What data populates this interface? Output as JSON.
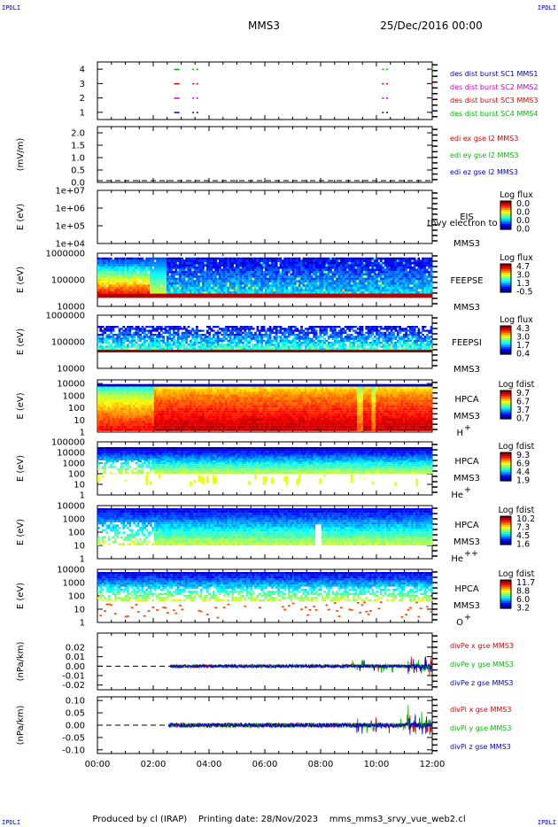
{
  "corner_label": "IPDLI",
  "header": {
    "mission": "MMS3",
    "date": "25/Dec/2016 00:00"
  },
  "footer": {
    "produced": "Produced by cl (IRAP)",
    "printing": "Printing date: 28/Nov/2023",
    "file": "mms_mms3_srvy_vue_web2.cl"
  },
  "chart_data": [
    {
      "id": "des-burst",
      "type": "line",
      "xlabel": "",
      "ylabel": "",
      "ylim": [
        0.5,
        4.5
      ],
      "yticks": [
        "1",
        "2",
        "3",
        "4"
      ],
      "legend_placement": "right",
      "series": [
        {
          "name": "des dist burst SC1 MMS1",
          "color": "#0000cc",
          "level": 1
        },
        {
          "name": "des dist burst SC2 MMS2",
          "color": "#cc00cc",
          "level": 2
        },
        {
          "name": "des dist burst SC3 MMS3",
          "color": "#dd0000",
          "level": 3
        },
        {
          "name": "des dist burst SC4 MMS4",
          "color": "#00bb00",
          "level": 4
        }
      ],
      "burst_times_hours": [
        2.75,
        3.4,
        3.55,
        10.2,
        10.35,
        11.95
      ]
    },
    {
      "id": "edi",
      "type": "line",
      "ylabel": "(mV/m)",
      "ylim": [
        0,
        2.25
      ],
      "yticks": [
        "0.0",
        "0.5",
        "1.0",
        "1.5",
        "2.0"
      ],
      "zero_line": true,
      "series": [
        {
          "name": "edi ex gse l2 MMS3",
          "color": "#dd0000"
        },
        {
          "name": "edi ey gse l2 MMS3",
          "color": "#00bb00"
        },
        {
          "name": "edi ez gse l2 MMS3",
          "color": "#0000cc"
        }
      ]
    },
    {
      "id": "eis",
      "type": "heatmap",
      "ylabel": "E (eV)",
      "yscale": "log",
      "ylim": [
        10000,
        10000000
      ],
      "yticks": [
        "1e+04",
        "1e+05",
        "1e+06",
        "1e+07"
      ],
      "instrument": "EIS",
      "instrument_note": "thvy electron to",
      "spacecraft": "MMS3",
      "colorbar": {
        "title": "Log flux",
        "ticks": [
          "0.0",
          "0.0",
          "0.0",
          "0.0"
        ]
      }
    },
    {
      "id": "feepse",
      "type": "heatmap",
      "ylabel": "E (eV)",
      "yscale": "log",
      "ylim": [
        10000,
        1000000
      ],
      "yticks": [
        "10000",
        "100000",
        "1000000"
      ],
      "instrument": "FEEPSE",
      "spacecraft": "MMS3",
      "colorbar": {
        "title": "Log flux",
        "ticks": [
          "4.7",
          "3.0",
          "1.3",
          "-0.5"
        ]
      }
    },
    {
      "id": "feepsi",
      "type": "heatmap",
      "ylabel": "E (eV)",
      "yscale": "log",
      "ylim": [
        10000,
        1000000
      ],
      "yticks": [
        "10000",
        "100000",
        "1000000"
      ],
      "instrument": "FEEPSI",
      "spacecraft": "MMS3",
      "colorbar": {
        "title": "Log flux",
        "ticks": [
          "4.3",
          "3.0",
          "1.7",
          "0.4"
        ]
      }
    },
    {
      "id": "hpca-h",
      "type": "heatmap",
      "ylabel": "E (eV)",
      "yscale": "log",
      "ylim": [
        1,
        20000
      ],
      "yticks": [
        "1",
        "10",
        "100",
        "1000",
        "10000"
      ],
      "instrument": "HPCA",
      "spacecraft": "MMS3",
      "species": "H",
      "charge": "+",
      "colorbar": {
        "title": "Log fdist",
        "ticks": [
          "9.7",
          "6.7",
          "3.7",
          "0.7"
        ]
      }
    },
    {
      "id": "hpca-he",
      "type": "heatmap",
      "ylabel": "E (eV)",
      "yscale": "log",
      "ylim": [
        1,
        100000
      ],
      "yticks": [
        "1",
        "10",
        "100",
        "1000",
        "10000",
        "100000"
      ],
      "instrument": "HPCA",
      "spacecraft": "MMS3",
      "species": "He",
      "charge": "+",
      "colorbar": {
        "title": "Log fdist",
        "ticks": [
          "9.3",
          "6.9",
          "4.4",
          "1.9"
        ]
      }
    },
    {
      "id": "hpca-hepp",
      "type": "heatmap",
      "ylabel": "E (eV)",
      "yscale": "log",
      "ylim": [
        1,
        10000
      ],
      "yticks": [
        "1",
        "10",
        "100",
        "1000",
        "10000"
      ],
      "instrument": "HPCA",
      "spacecraft": "MMS3",
      "species": "He",
      "charge": "++",
      "colorbar": {
        "title": "Log fdist",
        "ticks": [
          "10.2",
          "7.3",
          "4.5",
          "1.6"
        ]
      }
    },
    {
      "id": "hpca-o",
      "type": "heatmap",
      "ylabel": "E (eV)",
      "yscale": "log",
      "ylim": [
        1,
        10000
      ],
      "yticks": [
        "1",
        "10",
        "100",
        "1000",
        "10000"
      ],
      "instrument": "HPCA",
      "spacecraft": "MMS3",
      "species": "O",
      "charge": "+",
      "colorbar": {
        "title": "Log fdist",
        "ticks": [
          "11.7",
          "8.8",
          "6.0",
          "3.2"
        ]
      }
    },
    {
      "id": "divpe",
      "type": "line",
      "ylabel": "(nPa/km)",
      "ylim": [
        -0.025,
        0.035
      ],
      "yticks": [
        "-0.02",
        "-0.01",
        "0.00",
        "0.01",
        "0.02"
      ],
      "zero_line": true,
      "series": [
        {
          "name": "divPe x gse MMS3",
          "color": "#dd0000"
        },
        {
          "name": "divPe y gse MMS3",
          "color": "#00bb00"
        },
        {
          "name": "divPe z gse MMS3",
          "color": "#0000cc"
        }
      ]
    },
    {
      "id": "divpi",
      "type": "line",
      "ylabel": "(nPa/km)",
      "ylim": [
        -0.115,
        0.115
      ],
      "yticks": [
        "-0.10",
        "-0.05",
        "0.00",
        "0.05",
        "0.10"
      ],
      "zero_line": true,
      "series": [
        {
          "name": "divPi x gse MMS3",
          "color": "#dd0000"
        },
        {
          "name": "divPi y gse MMS3",
          "color": "#00bb00"
        },
        {
          "name": "divPi z gse MMS3",
          "color": "#0000cc"
        }
      ]
    }
  ],
  "time_axis": {
    "ticks": [
      "00:00",
      "02:00",
      "04:00",
      "06:00",
      "08:00",
      "10:00",
      "12:00"
    ],
    "range_hours": [
      0,
      12
    ]
  }
}
